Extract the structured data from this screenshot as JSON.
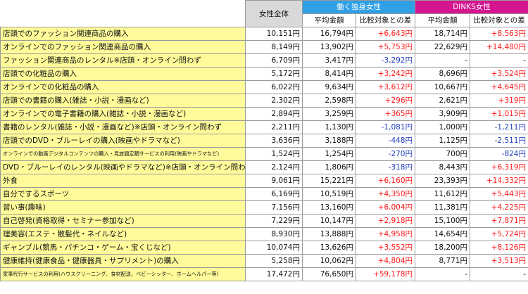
{
  "header": {
    "total": "女性全体",
    "single": "働く独身女性",
    "dinks": "DINKS女性",
    "avg": "平均金額",
    "diff": "比較対象との差"
  },
  "colors": {
    "single": "#2f9fe6",
    "dinks": "#d4158f",
    "label_bg": "#fffb9a",
    "positive": "#ff1a1a",
    "negative": "#1f3fbf"
  },
  "rows": [
    {
      "label": "店頭でのファッション関連商品の購入",
      "total": "10,151円",
      "s_avg": "16,794円",
      "s_diff": "+6,643円",
      "d_avg": "18,714円",
      "d_diff": "+8,563円"
    },
    {
      "label": "オンラインでのファッション関連商品の購入",
      "total": "8,149円",
      "s_avg": "13,902円",
      "s_diff": "+5,753円",
      "d_avg": "22,629円",
      "d_diff": "+14,480円"
    },
    {
      "label": "ファッション関連商品のレンタル※店頭・オンライン問わず",
      "total": "6,709円",
      "s_avg": "3,417円",
      "s_diff": "-3,292円",
      "d_avg": "-",
      "d_diff": "-"
    },
    {
      "label": "店頭での化粧品の購入",
      "total": "5,172円",
      "s_avg": "8,414円",
      "s_diff": "+3,242円",
      "d_avg": "8,696円",
      "d_diff": "+3,524円"
    },
    {
      "label": "オンラインでの化粧品の購入",
      "total": "6,022円",
      "s_avg": "9,634円",
      "s_diff": "+3,612円",
      "d_avg": "10,667円",
      "d_diff": "+4,645円"
    },
    {
      "label": "店頭での書籍の購入(雑誌・小説・漫画など)",
      "total": "2,302円",
      "s_avg": "2,598円",
      "s_diff": "+296円",
      "d_avg": "2,621円",
      "d_diff": "+319円"
    },
    {
      "label": "オンラインでの電子書籍の購入(雑誌・小説・漫画など)",
      "total": "2,894円",
      "s_avg": "3,259円",
      "s_diff": "+365円",
      "d_avg": "3,909円",
      "d_diff": "+1,015円"
    },
    {
      "label": "書籍のレンタル(雑誌・小説・漫画など)※店頭・オンライン問わず",
      "total": "2,211円",
      "s_avg": "1,130円",
      "s_diff": "-1,081円",
      "d_avg": "1,000円",
      "d_diff": "-1,211円"
    },
    {
      "label": "店頭でのDVD・ブルーレイの購入(映画やドラマなど)",
      "total": "3,636円",
      "s_avg": "3,188円",
      "s_diff": "-448円",
      "d_avg": "1,125円",
      "d_diff": "-2,511円"
    },
    {
      "label": "オンラインでの動画デジタルコンテンツの購入・見放題定額サービスの利用(映画やドラマなど)",
      "small": true,
      "total": "1,524円",
      "s_avg": "1,254円",
      "s_diff": "-270円",
      "d_avg": "700円",
      "d_diff": "-824円"
    },
    {
      "label": "DVD・ブルーレイのレンタル(映画やドラマなど)※店頭・オンライン問わず",
      "total": "2,124円",
      "s_avg": "1,806円",
      "s_diff": "-318円",
      "d_avg": "8,443円",
      "d_diff": "+6,319円"
    },
    {
      "label": "外食",
      "total": "9,061円",
      "s_avg": "15,221円",
      "s_diff": "+6,160円",
      "d_avg": "23,393円",
      "d_diff": "+14,332円"
    },
    {
      "label": "自分でするスポーツ",
      "total": "6,169円",
      "s_avg": "10,519円",
      "s_diff": "+4,350円",
      "d_avg": "11,612円",
      "d_diff": "+5,443円"
    },
    {
      "label": "習い事(趣味)",
      "total": "7,156円",
      "s_avg": "13,160円",
      "s_diff": "+6,004円",
      "d_avg": "11,381円",
      "d_diff": "+4,225円"
    },
    {
      "label": "自己啓発(資格取得・セミナー参加など)",
      "total": "7,229円",
      "s_avg": "10,147円",
      "s_diff": "+2,918円",
      "d_avg": "15,100円",
      "d_diff": "+7,871円"
    },
    {
      "label": "理美容(エステ・散髪代・ネイルなど)",
      "total": "8,930円",
      "s_avg": "13,888円",
      "s_diff": "+4,958円",
      "d_avg": "14,654円",
      "d_diff": "+5,724円"
    },
    {
      "label": "ギャンブル(競馬・パチンコ・ゲーム・宝くじなど)",
      "total": "10,074円",
      "s_avg": "13,626円",
      "s_diff": "+3,552円",
      "d_avg": "18,200円",
      "d_diff": "+8,126円"
    },
    {
      "label": "健康維持(健康食品・健康器具・サプリメント)の購入",
      "total": "5,258円",
      "s_avg": "10,062円",
      "s_diff": "+4,804円",
      "d_avg": "8,771円",
      "d_diff": "+3,513円"
    },
    {
      "label": "家事代行サービスの利用(ハウスクリーニング、食材配送、ベビーシッター、ホームヘルパー等)",
      "small": true,
      "total": "17,472円",
      "s_avg": "76,650円",
      "s_diff": "+59,178円",
      "d_avg": "-",
      "d_diff": "-"
    }
  ]
}
